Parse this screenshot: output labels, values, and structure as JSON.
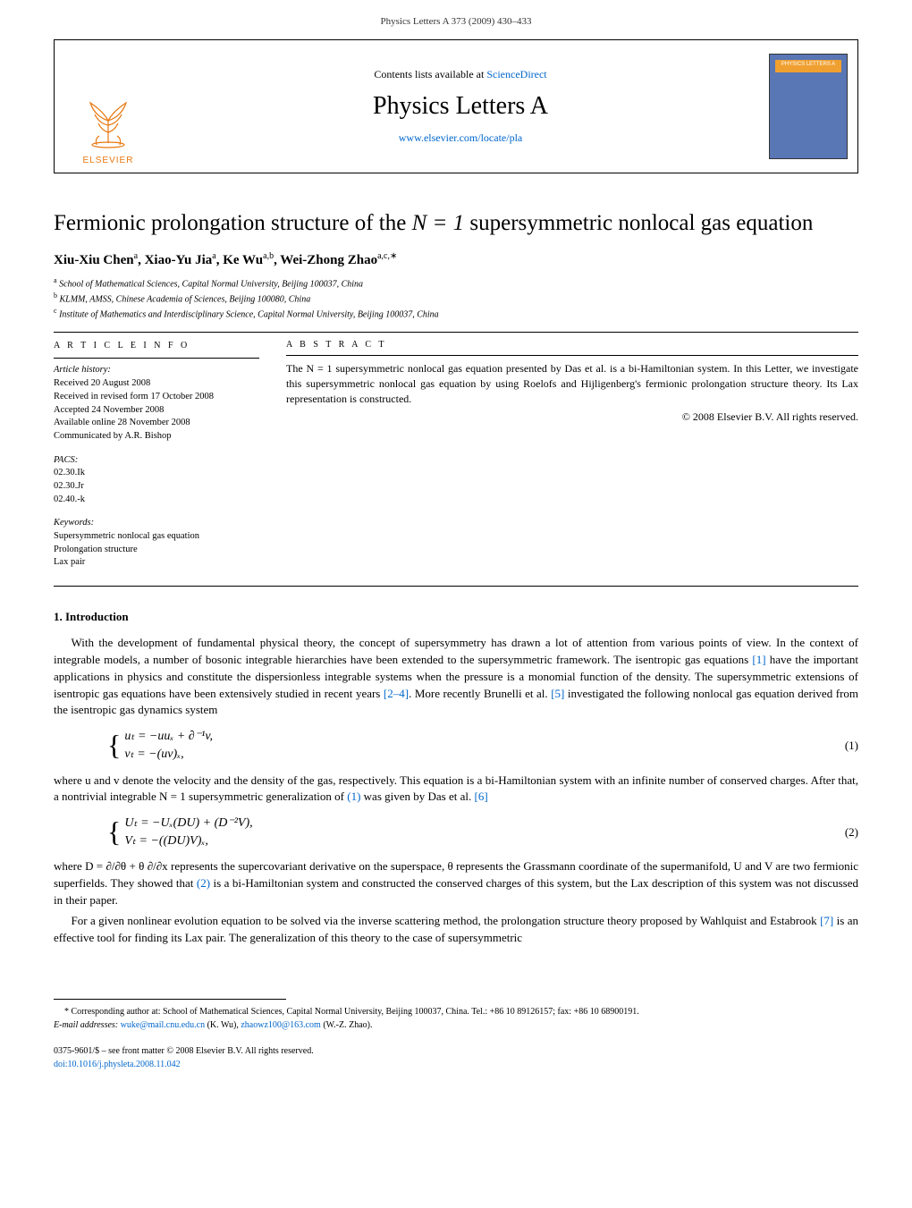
{
  "page_header": "Physics Letters A 373 (2009) 430–433",
  "header": {
    "contents_text": "Contents lists available at ",
    "contents_link": "ScienceDirect",
    "journal_name": "Physics Letters A",
    "journal_url": "www.elsevier.com/locate/pla",
    "publisher_label": "ELSEVIER",
    "cover_label": "PHYSICS LETTERS A"
  },
  "title_line1": "Fermionic prolongation structure of the ",
  "title_math": "N = 1",
  "title_line2": " supersymmetric nonlocal gas equation",
  "authors_html": "Xiu-Xiu Chen<sup>a</sup>, Xiao-Yu Jia<sup>a</sup>, Ke Wu<sup>a,b</sup>, Wei-Zhong Zhao<sup>a,c,∗</sup>",
  "affiliations": [
    "a School of Mathematical Sciences, Capital Normal University, Beijing 100037, China",
    "b KLMM, AMSS, Chinese Academia of Sciences, Beijing 100080, China",
    "c Institute of Mathematics and Interdisciplinary Science, Capital Normal University, Beijing 100037, China"
  ],
  "info": {
    "heading": "A R T I C L E   I N F O",
    "history_label": "Article history:",
    "history": [
      "Received 20 August 2008",
      "Received in revised form 17 October 2008",
      "Accepted 24 November 2008",
      "Available online 28 November 2008",
      "Communicated by A.R. Bishop"
    ],
    "pacs_label": "PACS:",
    "pacs": [
      "02.30.Ik",
      "02.30.Jr",
      "02.40.-k"
    ],
    "keywords_label": "Keywords:",
    "keywords": [
      "Supersymmetric nonlocal gas equation",
      "Prolongation structure",
      "Lax pair"
    ]
  },
  "abstract": {
    "heading": "A B S T R A C T",
    "text": "The N = 1 supersymmetric nonlocal gas equation presented by Das et al. is a bi-Hamiltonian system. In this Letter, we investigate this supersymmetric nonlocal gas equation by using Roelofs and Hijligenberg's fermionic prolongation structure theory. Its Lax representation is constructed.",
    "copyright": "© 2008 Elsevier B.V. All rights reserved."
  },
  "section1": {
    "heading": "1. Introduction",
    "p1_a": "With the development of fundamental physical theory, the concept of supersymmetry has drawn a lot of attention from various points of view. In the context of integrable models, a number of bosonic integrable hierarchies have been extended to the supersymmetric framework. The isentropic gas equations ",
    "ref1": "[1]",
    "p1_b": " have the important applications in physics and constitute the dispersionless integrable systems when the pressure is a monomial function of the density. The supersymmetric extensions of isentropic gas equations have been extensively studied in recent years ",
    "ref2": "[2–4]",
    "p1_c": ". More recently Brunelli et al. ",
    "ref3": "[5]",
    "p1_d": " investigated the following nonlocal gas equation derived from the isentropic gas dynamics system",
    "eq1_line1": "uₜ = −uuₓ + ∂⁻¹v,",
    "eq1_line2": "vₜ = −(uv)ₓ,",
    "eq1_num": "(1)",
    "p2_a": "where u and v denote the velocity and the density of the gas, respectively. This equation is a bi-Hamiltonian system with an infinite number of conserved charges. After that, a nontrivial integrable N = 1 supersymmetric generalization of ",
    "ref4": "(1)",
    "p2_b": " was given by Das et al. ",
    "ref5": "[6]",
    "eq2_line1": "Uₜ = −Uₓ(DU) + (D⁻²V),",
    "eq2_line2": "Vₜ = −((DU)V)ₓ,",
    "eq2_num": "(2)",
    "p3_a": "where D = ∂/∂θ + θ ∂/∂x represents the supercovariant derivative on the superspace, θ represents the Grassmann coordinate of the supermanifold, U and V are two fermionic superfields. They showed that ",
    "ref6": "(2)",
    "p3_b": " is a bi-Hamiltonian system and constructed the conserved charges of this system, but the Lax description of this system was not discussed in their paper.",
    "p4_a": "For a given nonlinear evolution equation to be solved via the inverse scattering method, the prolongation structure theory proposed by Wahlquist and Estabrook ",
    "ref7": "[7]",
    "p4_b": " is an effective tool for finding its Lax pair. The generalization of this theory to the case of supersymmetric"
  },
  "footnote": {
    "marker": "*",
    "text": "Corresponding author at: School of Mathematical Sciences, Capital Normal University, Beijing 100037, China. Tel.: +86 10 89126157; fax: +86 10 68900191.",
    "email_label": "E-mail addresses: ",
    "email1": "wuke@mail.cnu.edu.cn",
    "email1_name": " (K. Wu), ",
    "email2": "zhaowz100@163.com",
    "email2_name": " (W.-Z. Zhao)."
  },
  "bottom": {
    "issn": "0375-9601/$ – see front matter  © 2008 Elsevier B.V. All rights reserved.",
    "doi": "doi:10.1016/j.physleta.2008.11.042"
  },
  "colors": {
    "link": "#0066cc",
    "elsevier_orange": "#e8770f",
    "cover_bg": "#5976b5"
  }
}
